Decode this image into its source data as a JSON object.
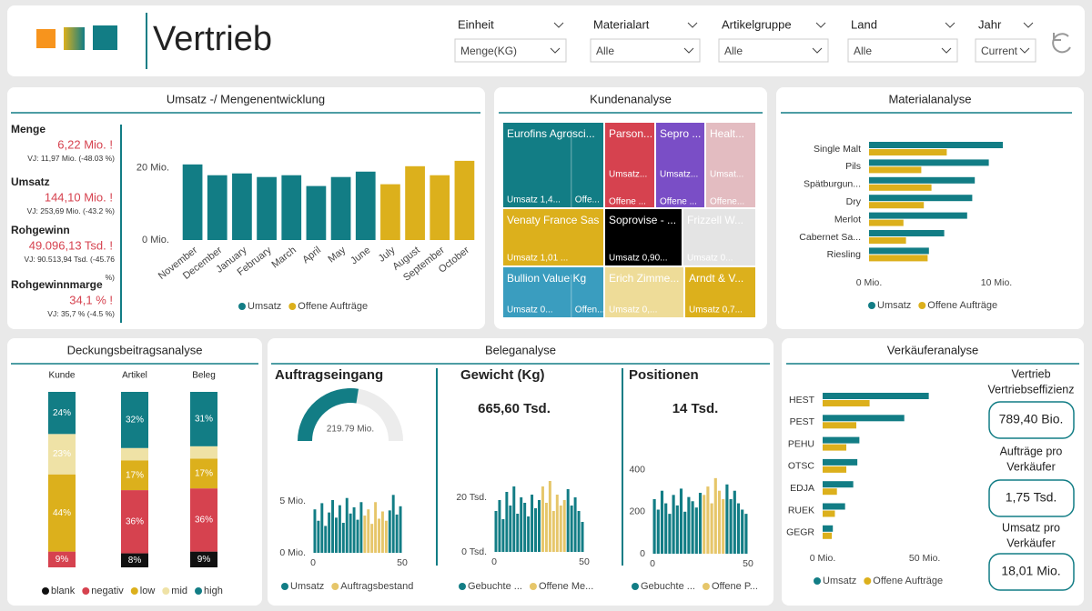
{
  "header": {
    "title": "Vertrieb",
    "filters": [
      {
        "label": "Einheit",
        "value": "Menge(KG)"
      },
      {
        "label": "Materialart",
        "value": "Alle"
      },
      {
        "label": "Artikelgruppe",
        "value": "Alle"
      },
      {
        "label": "Land",
        "value": "Alle"
      },
      {
        "label": "Jahr",
        "value": "Current"
      }
    ]
  },
  "umsatz": {
    "title": "Umsatz -/ Mengenentwicklung",
    "kpis": [
      {
        "label": "Menge",
        "value": "6,22 Mio. !",
        "vj": "VJ: 11,97 Mio. (-48.03 %)"
      },
      {
        "label": "Umsatz",
        "value": "144,10 Mio. !",
        "vj": "VJ: 253,69 Mio. (-43.2 %)"
      },
      {
        "label": "Rohgewinn",
        "value": "49.096,13 Tsd. !",
        "vj": "VJ: 90.513,94 Tsd. (-45.76 %)"
      },
      {
        "label": "Rohgewinnmarge",
        "value": "34,1 % !",
        "vj": "VJ: 35,7 % (-4.5 %)"
      }
    ]
  },
  "kunden": {
    "title": "Kundenanalyse",
    "tiles": [
      {
        "name": "Eurofins Agrosci...",
        "labels": [
          "Umsatz 1,4...",
          "Offe..."
        ],
        "color": "#127d85"
      },
      {
        "name": "Parson...",
        "labels": [
          "Umsatz...",
          "Offene ..."
        ],
        "color": "#d6424f"
      },
      {
        "name": "Sepro ...",
        "labels": [
          "Umsatz...",
          "Offene ..."
        ],
        "color": "#7a4ec6"
      },
      {
        "name": "Healt...",
        "labels": [
          "Umsat...",
          "Offene..."
        ],
        "color": "#e3bcc1"
      },
      {
        "name": "Venaty France Sas",
        "labels": [
          "Umsatz 1,01 ..."
        ],
        "color": "#dcb01c"
      },
      {
        "name": "Soprovise - ...",
        "labels": [
          "Umsatz 0,90..."
        ],
        "color": "#000000"
      },
      {
        "name": "Frizzell W...",
        "labels": [
          "Umsatz 0..."
        ],
        "color": "#e4e4e4"
      },
      {
        "name": "Bullion Value Kg",
        "labels": [
          "Umsatz 0...",
          "Offen..."
        ],
        "color": "#3a9dbf"
      },
      {
        "name": "Erich Zimme...",
        "labels": [
          "Umsatz 0,..."
        ],
        "color": "#eedc98"
      },
      {
        "name": "Arndt & V...",
        "labels": [
          "Umsatz 0,7..."
        ],
        "color": "#dcb01c"
      }
    ]
  },
  "beleg": {
    "title": "Beleganalyse",
    "sections": [
      {
        "title": "Auftragseingang"
      },
      {
        "title": "Gewicht (Kg)",
        "value": "665,60 Tsd."
      },
      {
        "title": "Positionen",
        "value": "14 Tsd."
      }
    ],
    "gauge": {
      "value": 219.79,
      "label": "219.79 Mio.",
      "range": [
        0,
        400
      ],
      "color": "#127d85"
    }
  },
  "verkaeufer": {
    "title": "Verkäuferanalyse",
    "cards": [
      {
        "title": [
          "Vertrieb",
          "Vertriebseffizienz"
        ],
        "value": "789,40 Bio."
      },
      {
        "title": [
          "Aufträge pro",
          "Verkäufer"
        ],
        "value": "1,75 Tsd."
      },
      {
        "title": [
          "Umsatz pro",
          "Verkäufer"
        ],
        "value": "18,01 Mio."
      }
    ]
  },
  "deckung_title": "Deckungsbeitragsanalyse",
  "material_title": "Materialanalyse",
  "chart_data": [
    {
      "type": "bar",
      "categories": [
        "November",
        "December",
        "January",
        "February",
        "March",
        "April",
        "May",
        "June",
        "July",
        "August",
        "September",
        "October"
      ],
      "series": [
        {
          "name": "Umsatz",
          "color": "#127d85",
          "values": [
            21,
            18,
            18.5,
            17.5,
            18,
            15,
            17.5,
            19,
            null,
            null,
            null,
            null
          ]
        },
        {
          "name": "Offene Aufträge",
          "color": "#dcb01c",
          "values": [
            null,
            null,
            null,
            null,
            null,
            null,
            null,
            null,
            15.5,
            20.5,
            18,
            22
          ]
        }
      ],
      "ylim": [
        0,
        25
      ],
      "yticks": [
        {
          "value": 0,
          "label": "0 Mio."
        },
        {
          "value": 20,
          "label": "20 Mio."
        }
      ]
    },
    {
      "type": "hbar",
      "categories": [
        "Single Malt",
        "Pils",
        "Spätburgun...",
        "Dry",
        "Merlot",
        "Cabernet Sa...",
        "Riesling"
      ],
      "series": [
        {
          "name": "Umsatz",
          "color": "#127d85",
          "values": [
            10.5,
            9.4,
            8.3,
            8.1,
            7.7,
            5.9,
            4.7
          ]
        },
        {
          "name": "Offene Aufträge",
          "color": "#dcb01c",
          "values": [
            6.1,
            4.1,
            4.9,
            4.3,
            2.7,
            2.9,
            4.6
          ]
        }
      ],
      "xlim": [
        0,
        15
      ],
      "xticks": [
        {
          "value": 0,
          "label": "0 Mio."
        },
        {
          "value": 10,
          "label": "10 Mio."
        }
      ]
    },
    {
      "type": "stacked_bar",
      "categories": [
        "Kunde",
        "Artikel",
        "Beleg"
      ],
      "series": [
        {
          "name": "blank",
          "color": "#111111",
          "values": [
            0,
            8,
            9
          ],
          "value_labels": [
            null,
            "8%",
            "9%"
          ]
        },
        {
          "name": "negativ",
          "color": "#d6424f",
          "values": [
            9,
            36,
            36
          ],
          "value_labels": [
            "9%",
            "36%",
            "36%"
          ]
        },
        {
          "name": "low",
          "color": "#dcb01c",
          "values": [
            44,
            17,
            17
          ],
          "value_labels": [
            "44%",
            "17%",
            "17%"
          ]
        },
        {
          "name": "mid",
          "color": "#efe2a6",
          "values": [
            23,
            7,
            7
          ],
          "value_labels": [
            "23%",
            null,
            null
          ]
        },
        {
          "name": "high",
          "color": "#127d85",
          "values": [
            24,
            32,
            31
          ],
          "value_labels": [
            "24%",
            "32%",
            "31%"
          ]
        }
      ],
      "ylim": [
        0,
        100
      ]
    },
    {
      "type": "column",
      "x": [
        1,
        3,
        5,
        7,
        9,
        11,
        13,
        15,
        17,
        19,
        21,
        23,
        25,
        27,
        29,
        31,
        33,
        35,
        37,
        39,
        41,
        43,
        45,
        47,
        49
      ],
      "series": [
        {
          "name": "Umsatz",
          "color": "#127d85",
          "values": [
            4.2,
            3.1,
            4.8,
            2.6,
            3.9,
            5.1,
            3.4,
            4.6,
            2.9,
            5.3,
            3.8,
            4.4,
            3.2,
            4.9,
            null,
            null,
            null,
            null,
            null,
            null,
            null,
            4.1,
            5.6,
            3.7,
            4.5
          ]
        },
        {
          "name": "Auftragsbestand",
          "color": "#e6c66a",
          "values": [
            null,
            null,
            null,
            null,
            null,
            null,
            null,
            null,
            null,
            null,
            null,
            null,
            null,
            null,
            3.6,
            4.2,
            2.8,
            4.9,
            3.3,
            4.0,
            3.1,
            null,
            null,
            null,
            null
          ]
        }
      ],
      "xlim": [
        0,
        50
      ],
      "xticks": [
        0,
        50
      ],
      "ylim": [
        0,
        8
      ],
      "yticks": [
        {
          "value": 0,
          "label": "0 Mio."
        },
        {
          "value": 5,
          "label": "5 Mio."
        }
      ]
    },
    {
      "type": "column",
      "x": [
        1,
        3,
        5,
        7,
        9,
        11,
        13,
        15,
        17,
        19,
        21,
        23,
        25,
        27,
        29,
        31,
        33,
        35,
        37,
        39,
        41,
        43,
        45,
        47,
        49
      ],
      "series": [
        {
          "name": "Gebuchte ...",
          "color": "#127d85",
          "values": [
            15,
            19,
            12,
            22,
            17,
            24,
            14,
            20,
            18,
            13,
            21,
            16,
            19,
            null,
            null,
            null,
            null,
            null,
            null,
            null,
            23,
            17,
            20,
            15,
            11
          ]
        },
        {
          "name": "Offene Me...",
          "color": "#e6c66a",
          "values": [
            null,
            null,
            null,
            null,
            null,
            null,
            null,
            null,
            null,
            null,
            null,
            null,
            null,
            24,
            18,
            26,
            15,
            21,
            17,
            19,
            null,
            null,
            null,
            null,
            null
          ]
        }
      ],
      "xlim": [
        0,
        50
      ],
      "xticks": [
        0,
        50
      ],
      "ylim": [
        0,
        28
      ],
      "yticks": [
        {
          "value": 0,
          "label": "0 Tsd."
        },
        {
          "value": 20,
          "label": "20 Tsd."
        }
      ]
    },
    {
      "type": "column",
      "x": [
        1,
        3,
        5,
        7,
        9,
        11,
        13,
        15,
        17,
        19,
        21,
        23,
        25,
        27,
        29,
        31,
        33,
        35,
        37,
        39,
        41,
        43,
        45,
        47,
        49
      ],
      "series": [
        {
          "name": "Gebuchte ...",
          "color": "#127d85",
          "values": [
            260,
            210,
            300,
            240,
            190,
            280,
            230,
            310,
            200,
            270,
            250,
            220,
            290,
            null,
            null,
            null,
            null,
            null,
            null,
            330,
            260,
            300,
            240,
            210,
            190
          ]
        },
        {
          "name": "Offene P...",
          "color": "#e6c66a",
          "values": [
            null,
            null,
            null,
            null,
            null,
            null,
            null,
            null,
            null,
            null,
            null,
            null,
            null,
            280,
            320,
            240,
            360,
            300,
            260,
            null,
            null,
            null,
            null,
            null,
            null
          ]
        }
      ],
      "xlim": [
        0,
        50
      ],
      "xticks": [
        0,
        50
      ],
      "ylim": [
        0,
        420
      ],
      "yticks": [
        0,
        200,
        400
      ]
    },
    {
      "type": "hbar",
      "categories": [
        "HEST",
        "PEST",
        "PEHU",
        "OTSC",
        "EDJA",
        "RUEK",
        "GEGR"
      ],
      "series": [
        {
          "name": "Umsatz",
          "color": "#127d85",
          "values": [
            52,
            40,
            18,
            17,
            15,
            11,
            5
          ]
        },
        {
          "name": "Offene Aufträge",
          "color": "#dcb01c",
          "values": [
            23,
            16.5,
            11.6,
            11.6,
            7,
            6,
            4.5
          ]
        }
      ],
      "xlim": [
        0,
        70
      ],
      "xticks": [
        {
          "value": 0,
          "label": "0 Mio."
        },
        {
          "value": 50,
          "label": "50 Mio."
        }
      ]
    }
  ]
}
